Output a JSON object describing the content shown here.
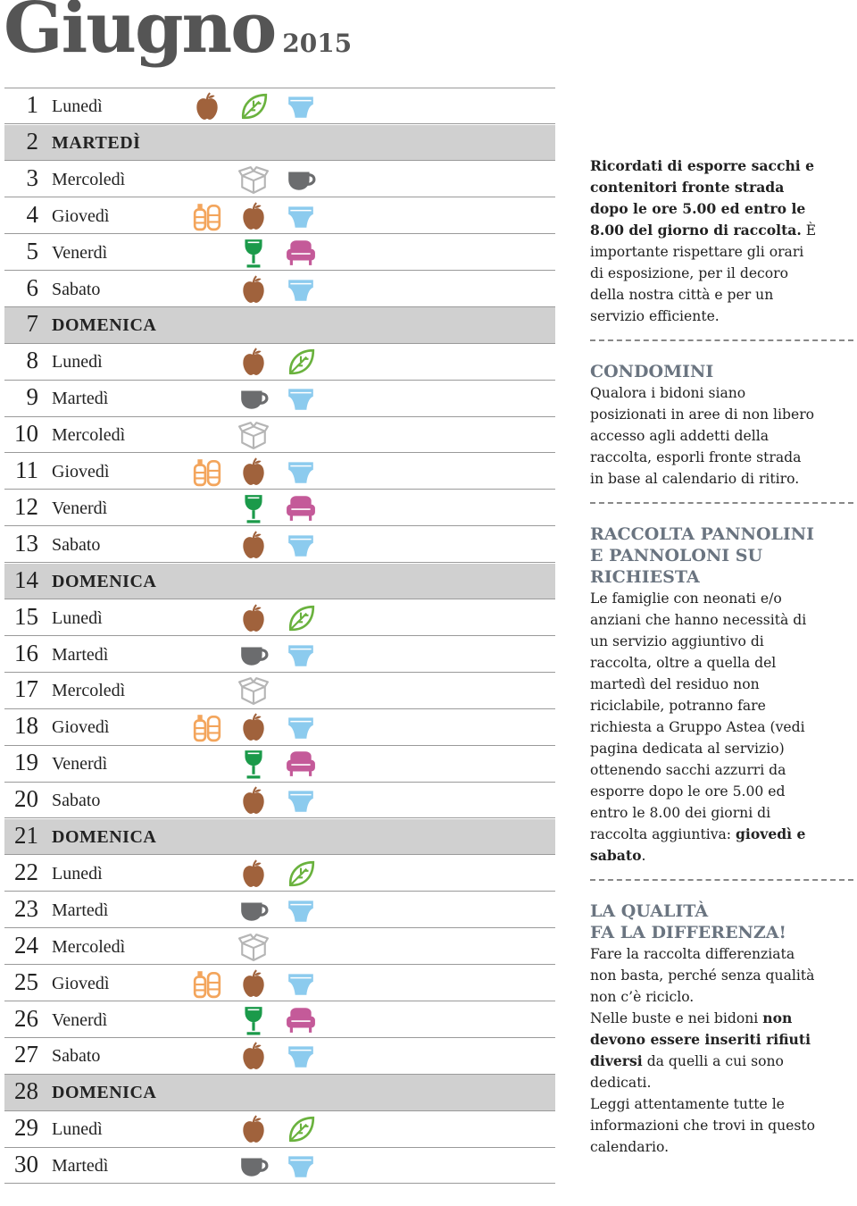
{
  "header": {
    "title": "Giugno",
    "year": "2015"
  },
  "days": [
    {
      "day": 1,
      "name": "Lunedì"
    },
    {
      "day": 2,
      "name": "MARTEDÌ",
      "highlight": true
    },
    {
      "day": 3,
      "name": "Mercoledì"
    },
    {
      "day": 4,
      "name": "Giovedì"
    },
    {
      "day": 5,
      "name": "Venerdì"
    },
    {
      "day": 6,
      "name": "Sabato"
    },
    {
      "day": 7,
      "name": "DOMENICA",
      "highlight": true
    },
    {
      "day": 8,
      "name": "Lunedì"
    },
    {
      "day": 9,
      "name": "Martedì"
    },
    {
      "day": 10,
      "name": "Mercoledì"
    },
    {
      "day": 11,
      "name": "Giovedì"
    },
    {
      "day": 12,
      "name": "Venerdì"
    },
    {
      "day": 13,
      "name": "Sabato"
    },
    {
      "day": 14,
      "name": "DOMENICA",
      "highlight": true
    },
    {
      "day": 15,
      "name": "Lunedì"
    },
    {
      "day": 16,
      "name": "Martedì"
    },
    {
      "day": 17,
      "name": "Mercoledì"
    },
    {
      "day": 18,
      "name": "Giovedì"
    },
    {
      "day": 19,
      "name": "Venerdì"
    },
    {
      "day": 20,
      "name": "Sabato"
    },
    {
      "day": 21,
      "name": "DOMENICA",
      "highlight": true
    },
    {
      "day": 22,
      "name": "Lunedì"
    },
    {
      "day": 23,
      "name": "Martedì"
    },
    {
      "day": 24,
      "name": "Mercoledì"
    },
    {
      "day": 25,
      "name": "Giovedì"
    },
    {
      "day": 26,
      "name": "Venerdì"
    },
    {
      "day": 27,
      "name": "Sabato"
    },
    {
      "day": 28,
      "name": "DOMENICA",
      "highlight": true
    },
    {
      "day": 29,
      "name": "Lunedì"
    },
    {
      "day": 30,
      "name": "Martedì"
    }
  ],
  "sections": [
    {
      "paragraphs": [
        [
          {
            "text": "Ricordati di esporre sacchi e contenitori fronte strada dopo le ore 5.00 ed entro le 8.00 del giorno di raccolta.",
            "bold": true
          },
          {
            "text": " È importante rispettare gli orari di esposizione, per il decoro della nostra città e per un servizio efficiente."
          }
        ]
      ]
    },
    {
      "heading": [
        "CONDOMINI"
      ],
      "paragraphs": [
        [
          {
            "text": "Qualora i bidoni siano posizionati in aree di non libero accesso agli addetti della raccolta, esporli fronte strada in base al calendario di ritiro."
          }
        ]
      ]
    },
    {
      "heading": [
        "RACCOLTA PANNOLINI",
        "E PANNOLONI SU",
        "RICHIESTA"
      ],
      "paragraphs": [
        [
          {
            "text": "Le famiglie con neonati e/o anziani che hanno necessità di un servizio aggiuntivo di raccolta, oltre a quella del martedì del residuo non riciclabile, potranno fare richiesta a Gruppo Astea (vedi pagina dedicata al servizio) ottenendo sacchi azzurri da esporre dopo le ore 5.00 ed entro le 8.00 dei giorni di raccolta aggiuntiva: "
          },
          {
            "text": "giovedì e sabato",
            "bold": true
          },
          {
            "text": "."
          }
        ]
      ]
    },
    {
      "heading": [
        "LA QUALITÀ",
        "FA LA DIFFERENZA!"
      ],
      "paragraphs": [
        [
          {
            "text": "Fare la raccolta differenziata non basta, perché senza qualità non c’è riciclo."
          }
        ],
        [
          {
            "text": "Nelle buste e nei bidoni "
          },
          {
            "text": "non devono essere inseriti rifiuti diversi",
            "bold": true
          },
          {
            "text": " da quelli a cui sono dedicati."
          }
        ],
        [
          {
            "text": "Leggi attentamente tutte le informazioni che trovi in questo calendario."
          }
        ]
      ]
    }
  ]
}
